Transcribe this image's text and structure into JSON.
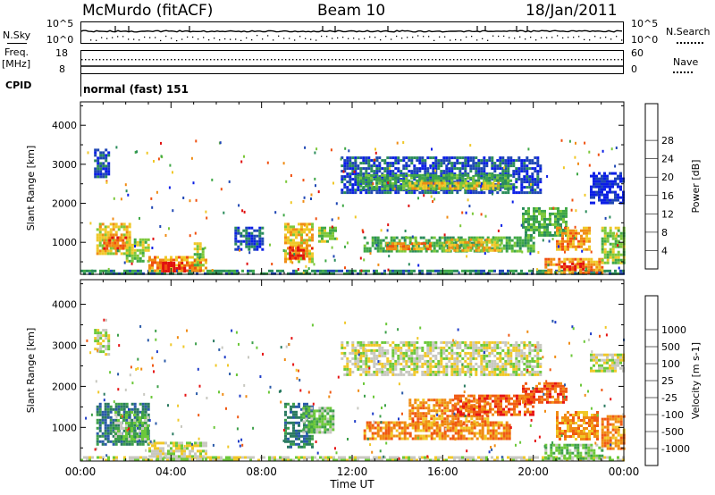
{
  "header": {
    "station": "McMurdo (fitACF)",
    "beam": "Beam 10",
    "date": "18/Jan/2011"
  },
  "top_panels": {
    "nsky_label": "N.Sky",
    "nsky_ticks": [
      "10^5",
      "10^0"
    ],
    "nsearch_label": "N.Search",
    "nsearch_ticks": [
      "10^5",
      "10^0"
    ],
    "freq_label_line1": "Freq.",
    "freq_label_line2": "[MHz]",
    "freq_ticks": [
      "18",
      "8"
    ],
    "nave_label": "Nave",
    "nave_ticks": [
      "60",
      "0"
    ],
    "cpid_label": "CPID",
    "cpid_value": "normal (fast) 151"
  },
  "colors": {
    "power": [
      "#0a1ee6",
      "#1e46b4",
      "#2a8c5a",
      "#3fa846",
      "#7cc83a",
      "#f0c828",
      "#f08c14",
      "#f05010",
      "#e01010"
    ],
    "velocity": [
      "#e61414",
      "#f05a14",
      "#f08c14",
      "#f0c828",
      "#c8c8c0",
      "#6cc83a",
      "#3ea04a",
      "#2a7a60",
      "#2a5aa8",
      "#1e3cc8"
    ]
  },
  "chart_data": [
    {
      "type": "heatmap",
      "panel": "power",
      "ylabel": "Slant Range [km]",
      "ylim": [
        180,
        4600
      ],
      "yticks": [
        "1000",
        "2000",
        "3000",
        "4000"
      ],
      "xlim": [
        0,
        24
      ],
      "colorbar_label": "Power [dB]",
      "colorbar_ticks": [
        "4",
        "8",
        "12",
        "16",
        "20",
        "24",
        "28"
      ],
      "regions": [
        {
          "t0": 0.0,
          "t1": 24.0,
          "r0": 190,
          "r1": 300,
          "level": 2
        },
        {
          "t0": 0.7,
          "t1": 2.2,
          "r0": 700,
          "r1": 1500,
          "level": 5
        },
        {
          "t0": 1.0,
          "t1": 2.0,
          "r0": 850,
          "r1": 1150,
          "level": 7
        },
        {
          "t0": 0.6,
          "t1": 1.3,
          "r0": 2700,
          "r1": 3400,
          "level": 1
        },
        {
          "t0": 2.0,
          "t1": 3.0,
          "r0": 500,
          "r1": 1100,
          "level": 4
        },
        {
          "t0": 3.0,
          "t1": 5.6,
          "r0": 250,
          "r1": 650,
          "level": 6
        },
        {
          "t0": 3.6,
          "t1": 4.6,
          "r0": 250,
          "r1": 500,
          "level": 8
        },
        {
          "t0": 5.0,
          "t1": 5.4,
          "r0": 400,
          "r1": 1000,
          "level": 4
        },
        {
          "t0": 6.8,
          "t1": 8.0,
          "r0": 800,
          "r1": 1400,
          "level": 1
        },
        {
          "t0": 9.0,
          "t1": 10.3,
          "r0": 500,
          "r1": 1500,
          "level": 5
        },
        {
          "t0": 9.2,
          "t1": 9.8,
          "r0": 600,
          "r1": 900,
          "level": 8
        },
        {
          "t0": 10.5,
          "t1": 11.3,
          "r0": 1000,
          "r1": 1400,
          "level": 4
        },
        {
          "t0": 11.5,
          "t1": 20.3,
          "r0": 2300,
          "r1": 3200,
          "level": 1
        },
        {
          "t0": 12.2,
          "t1": 19.0,
          "r0": 2350,
          "r1": 2750,
          "level": 3
        },
        {
          "t0": 14.5,
          "t1": 18.5,
          "r0": 2350,
          "r1": 2550,
          "level": 5
        },
        {
          "t0": 12.5,
          "t1": 20.0,
          "r0": 750,
          "r1": 1150,
          "level": 3
        },
        {
          "t0": 13.5,
          "t1": 15.5,
          "r0": 850,
          "r1": 1000,
          "level": 6
        },
        {
          "t0": 16.0,
          "t1": 18.5,
          "r0": 800,
          "r1": 1100,
          "level": 5
        },
        {
          "t0": 19.5,
          "t1": 21.5,
          "r0": 1200,
          "r1": 1900,
          "level": 3
        },
        {
          "t0": 21.0,
          "t1": 22.5,
          "r0": 800,
          "r1": 1400,
          "level": 6
        },
        {
          "t0": 20.5,
          "t1": 23.0,
          "r0": 250,
          "r1": 600,
          "level": 6
        },
        {
          "t0": 21.2,
          "t1": 22.2,
          "r0": 280,
          "r1": 480,
          "level": 8
        },
        {
          "t0": 23.0,
          "t1": 24.0,
          "r0": 500,
          "r1": 1400,
          "level": 4
        },
        {
          "t0": 22.5,
          "t1": 24.0,
          "r0": 2000,
          "r1": 2800,
          "level": 0
        }
      ]
    },
    {
      "type": "heatmap",
      "panel": "velocity",
      "xlabel": "Time UT",
      "ylabel": "Slant Range [km]",
      "ylim": [
        180,
        4600
      ],
      "yticks": [
        "1000",
        "2000",
        "3000",
        "4000"
      ],
      "xlim": [
        0,
        24
      ],
      "xticks": [
        "00:00",
        "04:00",
        "08:00",
        "12:00",
        "16:00",
        "20:00",
        "00:00"
      ],
      "colorbar_label": "Velocity [m s-1]",
      "colorbar_ticks": [
        "-1000",
        "-500",
        "-100",
        "-25",
        "25",
        "100",
        "500",
        "1000"
      ],
      "regions": [
        {
          "t0": 0.0,
          "t1": 24.0,
          "r0": 190,
          "r1": 300,
          "level": 4
        },
        {
          "t0": 0.7,
          "t1": 3.0,
          "r0": 600,
          "r1": 1600,
          "level": 7
        },
        {
          "t0": 1.5,
          "t1": 3.0,
          "r0": 700,
          "r1": 1400,
          "level": 5
        },
        {
          "t0": 3.0,
          "t1": 5.6,
          "r0": 250,
          "r1": 650,
          "level": 4
        },
        {
          "t0": 0.6,
          "t1": 1.3,
          "r0": 2800,
          "r1": 3400,
          "level": 4
        },
        {
          "t0": 9.0,
          "t1": 10.3,
          "r0": 500,
          "r1": 1600,
          "level": 7
        },
        {
          "t0": 9.8,
          "t1": 11.2,
          "r0": 900,
          "r1": 1500,
          "level": 5
        },
        {
          "t0": 11.5,
          "t1": 20.3,
          "r0": 2300,
          "r1": 3100,
          "level": 4
        },
        {
          "t0": 12.5,
          "t1": 19.0,
          "r0": 750,
          "r1": 1150,
          "level": 2
        },
        {
          "t0": 14.5,
          "t1": 18.0,
          "r0": 1100,
          "r1": 1700,
          "level": 2
        },
        {
          "t0": 16.5,
          "t1": 20.0,
          "r0": 1300,
          "r1": 1800,
          "level": 1
        },
        {
          "t0": 19.5,
          "t1": 21.5,
          "r0": 1600,
          "r1": 2100,
          "level": 1
        },
        {
          "t0": 20.5,
          "t1": 23.0,
          "r0": 250,
          "r1": 600,
          "level": 5
        },
        {
          "t0": 21.0,
          "t1": 22.8,
          "r0": 700,
          "r1": 1400,
          "level": 2
        },
        {
          "t0": 23.0,
          "t1": 24.0,
          "r0": 500,
          "r1": 1300,
          "level": 2
        },
        {
          "t0": 22.5,
          "t1": 24.0,
          "r0": 2400,
          "r1": 2800,
          "level": 4
        }
      ]
    }
  ]
}
